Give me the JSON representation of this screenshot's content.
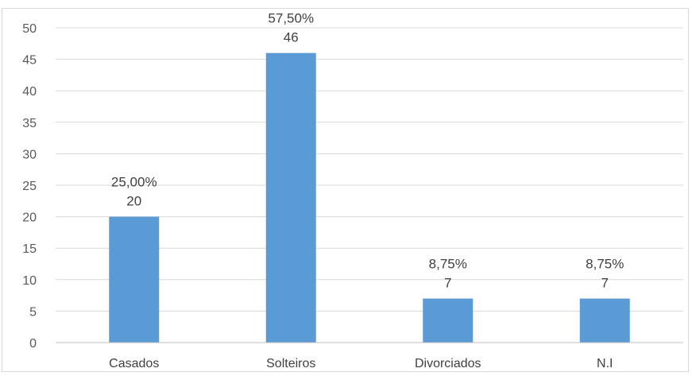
{
  "chart_data": {
    "type": "bar",
    "categories": [
      "Casados",
      "Solteiros",
      "Divorciados",
      "N.I"
    ],
    "values": [
      20,
      46,
      7,
      7
    ],
    "percent_labels": [
      "25,00%",
      "57,50%",
      "8,75%",
      "8,75%"
    ],
    "value_labels": [
      "20",
      "46",
      "7",
      "7"
    ],
    "ylim": [
      0,
      50
    ],
    "yticks": [
      0,
      5,
      10,
      15,
      20,
      25,
      30,
      35,
      40,
      45,
      50
    ],
    "grid": true,
    "legend": "none",
    "title": "",
    "xlabel": "",
    "ylabel": "",
    "colors": {
      "bar": "#5b9bd5",
      "grid": "#d9d9d9",
      "axis": "#bfbfbf"
    }
  }
}
